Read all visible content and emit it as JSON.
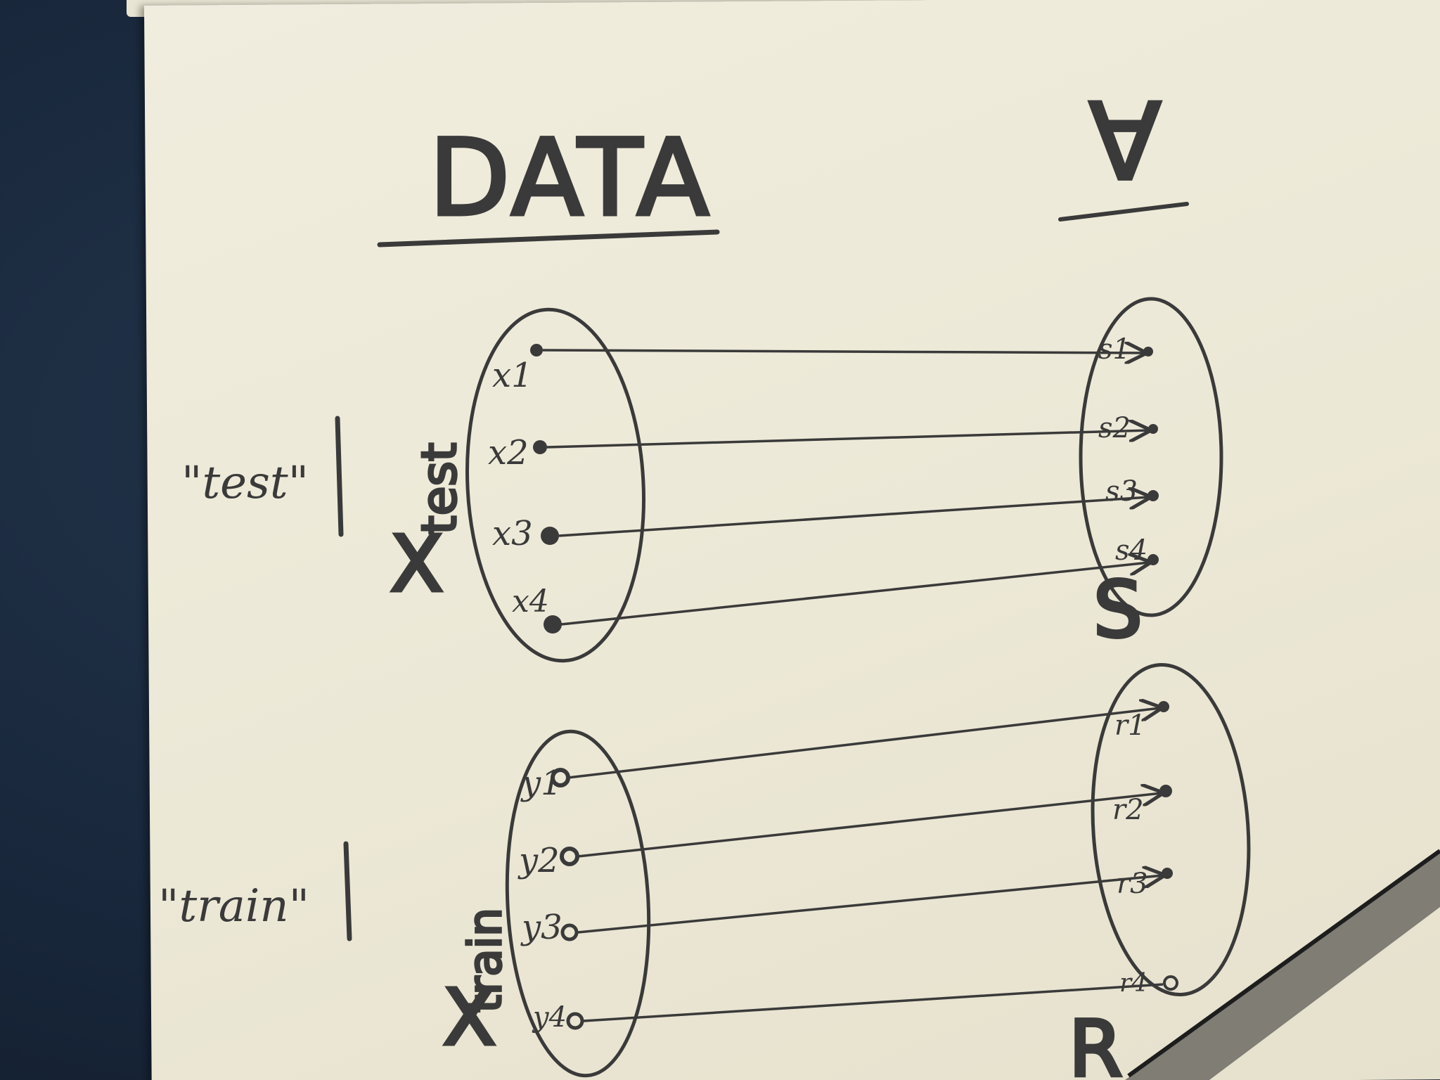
{
  "title": "DATA",
  "right_heading_glyph": "A",
  "groups": {
    "test": {
      "label": "\"test\"",
      "set_name": "X",
      "set_subscript": "test",
      "inputs": [
        "x1",
        "x2",
        "x3",
        "x4"
      ],
      "outputs": [
        "s1",
        "s2",
        "s3",
        "s4"
      ],
      "output_set_name": "S"
    },
    "train": {
      "label": "\"train\"",
      "set_name": "X",
      "set_subscript": "train",
      "inputs": [
        "y1",
        "y2",
        "y3",
        "y4"
      ],
      "outputs": [
        "r1",
        "r2",
        "r3",
        "r4"
      ],
      "output_set_name": "R"
    }
  },
  "colors": {
    "pencil": "#3a3a3a",
    "paper": "#efebdb",
    "desk": "#1c2a3a"
  }
}
